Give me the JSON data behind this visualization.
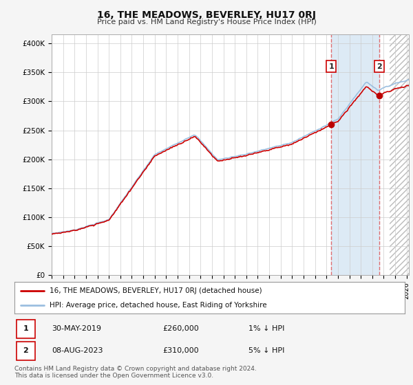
{
  "title": "16, THE MEADOWS, BEVERLEY, HU17 0RJ",
  "subtitle": "Price paid vs. HM Land Registry's House Price Index (HPI)",
  "ylabel_ticks": [
    "£0",
    "£50K",
    "£100K",
    "£150K",
    "£200K",
    "£250K",
    "£300K",
    "£350K",
    "£400K"
  ],
  "ytick_values": [
    0,
    50000,
    100000,
    150000,
    200000,
    250000,
    300000,
    350000,
    400000
  ],
  "ylim": [
    0,
    415000
  ],
  "xlim_start": 1995.0,
  "xlim_end": 2026.2,
  "hpi_color": "#9bbfe0",
  "price_color": "#cc0000",
  "shade_color": "#ddeaf5",
  "annotation1_date": 2019.42,
  "annotation1_price": 260000,
  "annotation2_date": 2023.6,
  "annotation2_price": 310000,
  "vline_color": "#e06060",
  "future_start": 2024.5,
  "legend_line1": "16, THE MEADOWS, BEVERLEY, HU17 0RJ (detached house)",
  "legend_line2": "HPI: Average price, detached house, East Riding of Yorkshire",
  "footer": "Contains HM Land Registry data © Crown copyright and database right 2024.\nThis data is licensed under the Open Government Licence v3.0.",
  "background_color": "#f5f5f5",
  "plot_bg_color": "#ffffff",
  "grid_color": "#cccccc"
}
